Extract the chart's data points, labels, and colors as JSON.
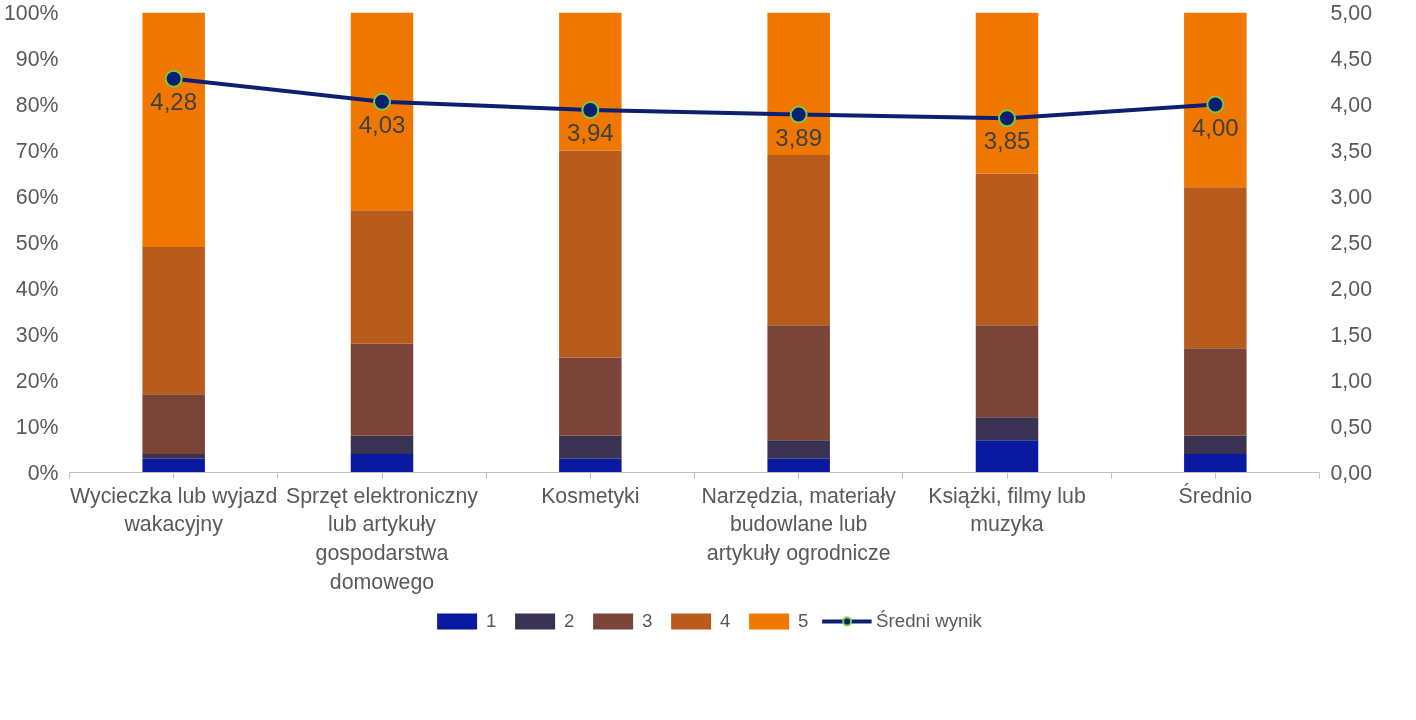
{
  "chart_data": {
    "type": "bar",
    "stacked": true,
    "categories": [
      "Wycieczka lub wyjazd wakacyjny",
      "Sprzęt elektroniczny lub artykuły gospodarstwa domowego",
      "Kosmetyki",
      "Narzędzia, materiały budowlane lub artykuły ogrodnicze",
      "Książki, filmy lub muzyka",
      "Średnio"
    ],
    "series": [
      {
        "name": "1",
        "color": "#0a1aa0",
        "values": [
          3,
          4,
          3,
          3,
          7,
          4
        ]
      },
      {
        "name": "2",
        "color": "#3a3252",
        "values": [
          1,
          4,
          5,
          4,
          5,
          4
        ]
      },
      {
        "name": "3",
        "color": "#7a4438",
        "values": [
          13,
          20,
          17,
          25,
          20,
          19
        ]
      },
      {
        "name": "4",
        "color": "#b85c1e",
        "values": [
          32,
          29,
          45,
          37,
          33,
          35
        ]
      },
      {
        "name": "5",
        "color": "#f07800",
        "values": [
          51,
          43,
          30,
          31,
          35,
          38
        ]
      },
      {
        "name": "Średni wynik",
        "type": "line",
        "axis": "y2",
        "color": "#0d1f70",
        "marker": "circle",
        "values": [
          4.28,
          4.03,
          3.94,
          3.89,
          3.85,
          4.0
        ],
        "value_labels": [
          "4,28",
          "4,03",
          "3,94",
          "3,89",
          "3,85",
          "4,00"
        ]
      }
    ],
    "ylim": [
      0,
      100
    ],
    "yticks": [
      {
        "value": 0,
        "label": "0%"
      },
      {
        "value": 10,
        "label": "10%"
      },
      {
        "value": 20,
        "label": "20%"
      },
      {
        "value": 30,
        "label": "30%"
      },
      {
        "value": 40,
        "label": "40%"
      },
      {
        "value": 50,
        "label": "50%"
      },
      {
        "value": 60,
        "label": "60%"
      },
      {
        "value": 70,
        "label": "70%"
      },
      {
        "value": 80,
        "label": "80%"
      },
      {
        "value": 90,
        "label": "90%"
      },
      {
        "value": 100,
        "label": "100%"
      }
    ],
    "y2lim": [
      0,
      5
    ],
    "y2ticks": [
      {
        "value": 0,
        "label": "0,00"
      },
      {
        "value": 0.5,
        "label": "0,50"
      },
      {
        "value": 1,
        "label": "1,00"
      },
      {
        "value": 1.5,
        "label": "1,50"
      },
      {
        "value": 2,
        "label": "2,00"
      },
      {
        "value": 2.5,
        "label": "2,50"
      },
      {
        "value": 3,
        "label": "3,00"
      },
      {
        "value": 3.5,
        "label": "3,50"
      },
      {
        "value": 4,
        "label": "4,00"
      },
      {
        "value": 4.5,
        "label": "4,50"
      },
      {
        "value": 5,
        "label": "5,00"
      }
    ],
    "grid": false,
    "legend": "bottom"
  }
}
